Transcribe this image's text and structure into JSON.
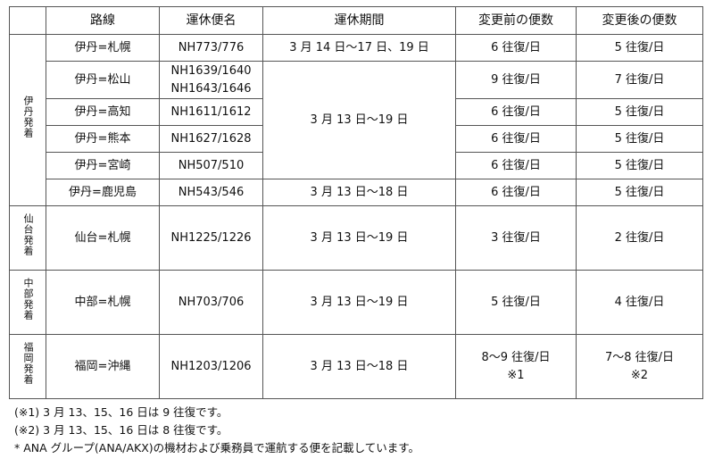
{
  "headers": [
    "",
    "路線",
    "運休便名",
    "運休期間",
    "変更前の便数",
    "変更後の便数"
  ],
  "groups": {
    "itami": "伊丹発着",
    "sendai": "仙台発着",
    "chubu": "中部発着",
    "fukuoka": "福岡発着"
  },
  "rows": [
    {
      "route": "伊丹=札幌",
      "flights": "NH773/776",
      "period": "3 月 14 日～17 日、19 日",
      "before": "6 往復/日",
      "after": "5 往復/日"
    },
    {
      "route": "伊丹=松山",
      "flights": "NH1639/1640",
      "flights2": "NH1643/1646",
      "before": "9 往復/日",
      "after": "7 往復/日"
    },
    {
      "route": "伊丹=高知",
      "flights": "NH1611/1612",
      "period": "3 月 13 日～19 日",
      "before": "6 往復/日",
      "after": "5 往復/日"
    },
    {
      "route": "伊丹=熊本",
      "flights": "NH1627/1628",
      "before": "6 往復/日",
      "after": "5 往復/日"
    },
    {
      "route": "伊丹=宮崎",
      "flights": "NH507/510",
      "before": "6 往復/日",
      "after": "5 往復/日"
    },
    {
      "route": "伊丹=鹿児島",
      "flights": "NH543/546",
      "period": "3 月 13 日～18 日",
      "before": "6 往復/日",
      "after": "5 往復/日"
    },
    {
      "route": "仙台=札幌",
      "flights": "NH1225/1226",
      "period": "3 月 13 日～19 日",
      "before": "3 往復/日",
      "after": "2 往復/日"
    },
    {
      "route": "中部=札幌",
      "flights": "NH703/706",
      "period": "3 月 13 日～19 日",
      "before": "5 往復/日",
      "after": "4 往復/日"
    },
    {
      "route": "福岡=沖縄",
      "flights": "NH1203/1206",
      "period": "3 月 13 日～18 日",
      "before": "8～9 往復/日",
      "before_note": "※1",
      "after": "7～8 往復/日",
      "after_note": "※2"
    }
  ],
  "notes": [
    "(※1) 3 月 13、15、16 日は 9 往復です。",
    "(※2) 3 月 13、15、16 日は 8 往復です。",
    "* ANA グループ(ANA/AKX)の機材および乗務員で運航する便を記載しています。"
  ]
}
